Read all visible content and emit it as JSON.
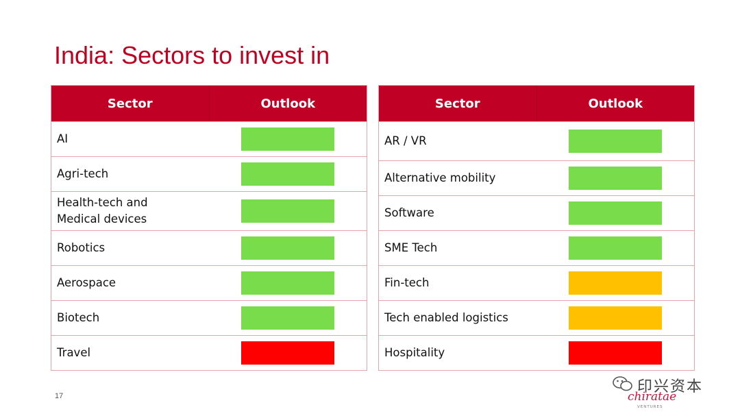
{
  "title": "India: Sectors to invest in",
  "page_number": "17",
  "colors": {
    "title": "#c00020",
    "header": "#c00025",
    "positive": "#79dc4b",
    "neutral": "#ffc000",
    "negative": "#ff0000"
  },
  "left_table": {
    "headers": [
      "Sector",
      "Outlook"
    ],
    "rows": [
      {
        "sector": "AI",
        "outlook": "positive"
      },
      {
        "sector": "Agri-tech",
        "outlook": "positive"
      },
      {
        "sector": "Health-tech and Medical devices",
        "outlook": "positive"
      },
      {
        "sector": "Robotics",
        "outlook": "positive"
      },
      {
        "sector": "Aerospace",
        "outlook": "positive"
      },
      {
        "sector": "Biotech",
        "outlook": "positive"
      },
      {
        "sector": "Travel",
        "outlook": "negative"
      }
    ]
  },
  "right_table": {
    "headers": [
      "Sector",
      "Outlook"
    ],
    "rows": [
      {
        "sector": "AR / VR",
        "outlook": "positive"
      },
      {
        "sector": "Alternative mobility",
        "outlook": "positive"
      },
      {
        "sector": "Software",
        "outlook": "positive"
      },
      {
        "sector": "SME Tech",
        "outlook": "positive"
      },
      {
        "sector": "Fin-tech",
        "outlook": "neutral"
      },
      {
        "sector": "Tech enabled logistics",
        "outlook": "neutral"
      },
      {
        "sector": "Hospitality",
        "outlook": "negative"
      }
    ]
  },
  "watermark": {
    "text": "印兴资本",
    "logo_text": "chiratae",
    "logo_subtext": "VENTURES",
    "icon": "wechat-icon"
  }
}
